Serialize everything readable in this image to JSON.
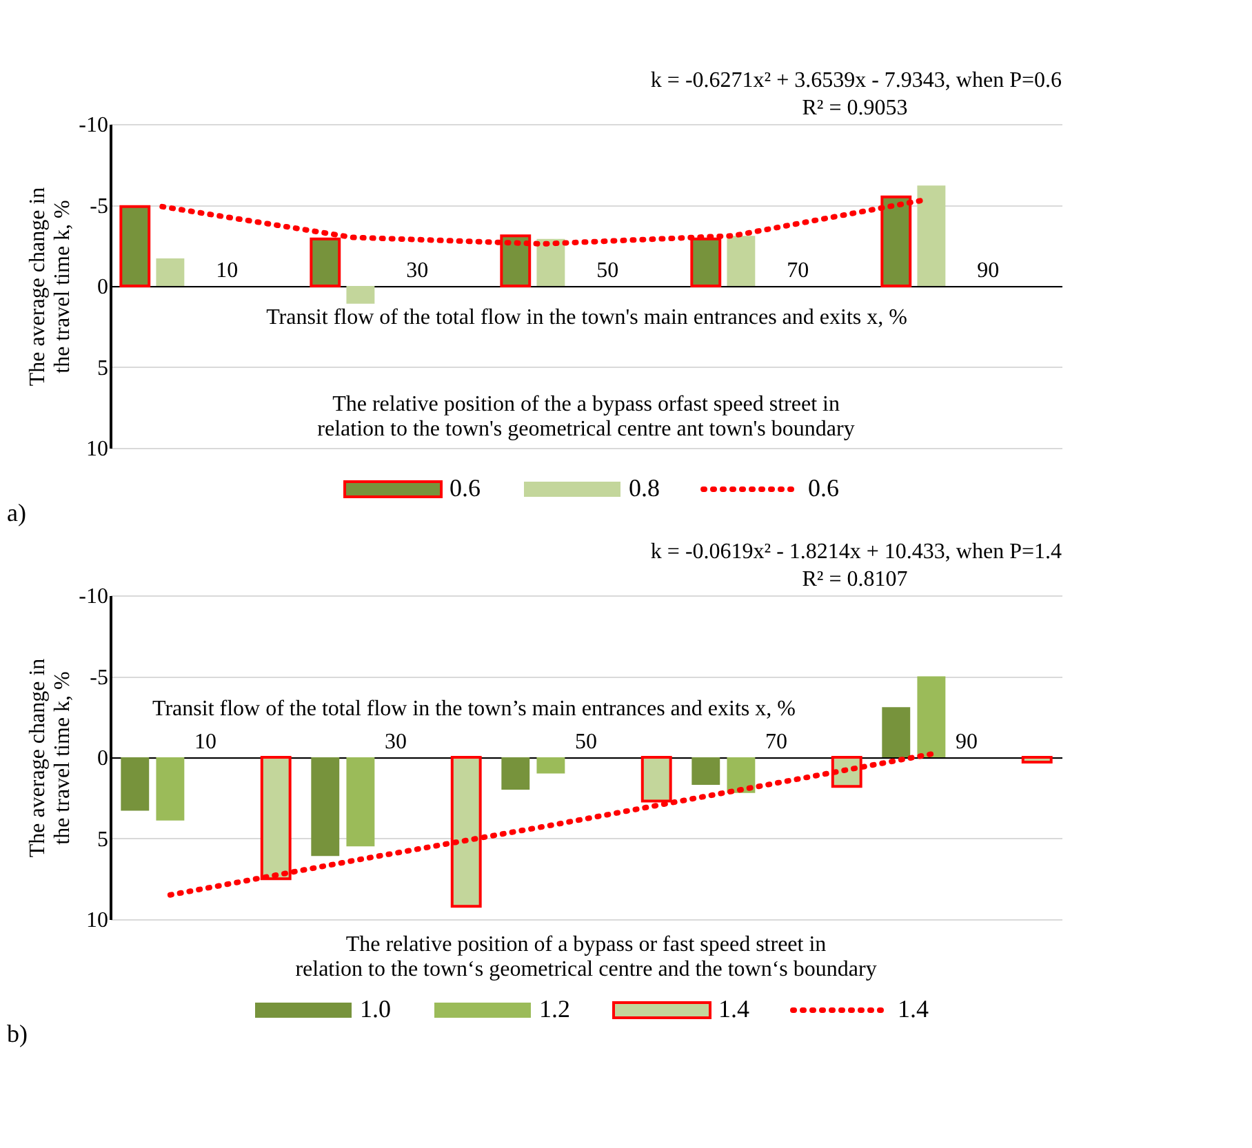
{
  "chart_data": [
    {
      "type": "bar",
      "categories": [
        "10",
        "30",
        "50",
        "70",
        "90"
      ],
      "xlabel": "Transit flow of the total flow in the town's main entrances and exits x, %",
      "ylabel": "The average change in the travel time k, %",
      "ylim": [
        10,
        -10
      ],
      "yticks": [
        -10,
        -5,
        0,
        5,
        10
      ],
      "grid": "y",
      "legend": "bottom",
      "series": [
        {
          "name": "0.6",
          "color": "#77933c",
          "values": [
            -4.9,
            -2.9,
            -3.1,
            -2.9,
            -5.5
          ]
        },
        {
          "name": "0.8",
          "color": "#c3d69b",
          "values": [
            -1.7,
            1.1,
            -2.9,
            -3.1,
            -6.2
          ]
        },
        {
          "name": "0.6",
          "type": "line",
          "color": "#ff0000",
          "line_style": "dotted",
          "values": [
            -4.9,
            -3.0,
            -2.6,
            -3.1,
            -5.3
          ]
        }
      ],
      "annotations": [
        "k = -0.6271x² + 3.6539x - 7.9343, when P=0.6",
        "R² = 0.9053",
        "The relative position of the a bypass orfast speed street in relation to the town's geometrical centre ant town's boundary",
        "a)"
      ]
    },
    {
      "type": "bar",
      "categories": [
        "10",
        "30",
        "50",
        "70",
        "90"
      ],
      "xlabel": "Transit flow of the total flow in the town’s main entrances and exits x, %",
      "ylabel": "The average change in the travel time k, %",
      "ylim": [
        10,
        -10
      ],
      "yticks": [
        -10,
        -5,
        0,
        5,
        10
      ],
      "grid": "y",
      "legend": "bottom",
      "series": [
        {
          "name": "1.0",
          "color": "#77933c",
          "values": [
            3.3,
            6.1,
            2.0,
            1.7,
            -3.1
          ]
        },
        {
          "name": "1.2",
          "color": "#9bbb59",
          "values": [
            3.9,
            5.5,
            1.0,
            2.2,
            -5.0
          ]
        },
        {
          "name": "1.4",
          "color": "#c3d69b",
          "values": [
            7.5,
            9.2,
            2.7,
            1.8,
            0.3
          ]
        },
        {
          "name": "1.4",
          "type": "line",
          "color": "#ff0000",
          "line_style": "dotted",
          "values": [
            8.5,
            6.3,
            4.2,
            2.0,
            -0.2
          ]
        }
      ],
      "annotations": [
        "k = -0.0619x² - 1.8214x + 10.433, when P=1.4",
        "R² = 0.8107",
        "The relative position of a bypass or fast speed street in relation to the town‘s geometrical centre and the town‘s boundary",
        "b)"
      ]
    }
  ]
}
